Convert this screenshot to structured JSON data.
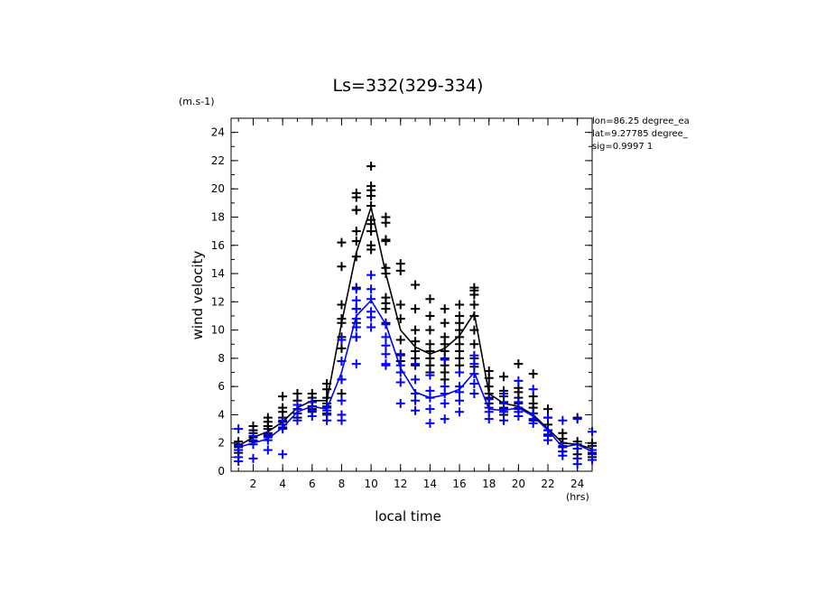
{
  "chart_data": {
    "type": "scatter",
    "title": "Ls=332(329-334)",
    "xlabel": "local time",
    "ylabel": "wind velocity",
    "x_unit": "(hrs)",
    "y_unit": "(m.s-1)",
    "xlim": [
      0.5,
      25
    ],
    "ylim": [
      0,
      25
    ],
    "x_ticks": [
      2,
      4,
      6,
      8,
      10,
      12,
      14,
      16,
      18,
      20,
      22,
      24
    ],
    "y_ticks": [
      0,
      2,
      4,
      6,
      8,
      10,
      12,
      14,
      16,
      18,
      20,
      22,
      24
    ],
    "annotations": [
      "lon=86.25 degree_ea",
      "lat=9.27785 degree_",
      "sig=0.9997 1"
    ],
    "series": [
      {
        "color": "#000000",
        "mean_line": {
          "x": [
            1,
            2,
            3,
            4,
            5,
            6,
            7,
            8,
            9,
            10,
            11,
            12,
            13,
            14,
            15,
            16,
            17,
            18,
            19,
            20,
            21,
            22,
            23,
            24,
            25
          ],
          "y": [
            1.8,
            2.4,
            2.8,
            3.5,
            4.5,
            5.0,
            5.0,
            10.5,
            15.5,
            18.7,
            14.0,
            10.0,
            8.8,
            8.3,
            8.7,
            9.6,
            11.2,
            5.5,
            4.8,
            4.6,
            4.0,
            3.0,
            2.0,
            1.9,
            1.6
          ]
        },
        "points": {
          "x": [
            1,
            1,
            1,
            1,
            1,
            2,
            2,
            2,
            2,
            2,
            3,
            3,
            3,
            3,
            3,
            3,
            4,
            4,
            4,
            4,
            4,
            4,
            5,
            5,
            5,
            5,
            5,
            5,
            6,
            6,
            6,
            6,
            6,
            6,
            7,
            7,
            7,
            7,
            7,
            7,
            8,
            8,
            8,
            8,
            8,
            8,
            8,
            8,
            8,
            8,
            9,
            9,
            9,
            9,
            9,
            9,
            9,
            9,
            9,
            9,
            9,
            10,
            10,
            10,
            10,
            10,
            10,
            10,
            10,
            10,
            10,
            11,
            11,
            11,
            11,
            11,
            11,
            11,
            11,
            11,
            11,
            12,
            12,
            12,
            12,
            12,
            12,
            12,
            13,
            13,
            13,
            13,
            13,
            13,
            13,
            14,
            14,
            14,
            14,
            14,
            14,
            14,
            14,
            15,
            15,
            15,
            15,
            15,
            15,
            15,
            15,
            15,
            16,
            16,
            16,
            16,
            16,
            16,
            16,
            16,
            16,
            17,
            17,
            17,
            17,
            17,
            17,
            17,
            17,
            17,
            18,
            18,
            18,
            18,
            18,
            18,
            19,
            19,
            19,
            19,
            19,
            19,
            20,
            20,
            20,
            20,
            20,
            20,
            21,
            21,
            21,
            21,
            21,
            21,
            22,
            22,
            22,
            22,
            22,
            23,
            23,
            23,
            23,
            23,
            24,
            24,
            24,
            24,
            24,
            25,
            25,
            25,
            25,
            25
          ],
          "y": [
            2.1,
            1.9,
            1.7,
            1.5,
            1.3,
            3.2,
            2.9,
            2.7,
            2.4,
            2.1,
            3.8,
            3.5,
            3.2,
            3.0,
            2.7,
            2.5,
            5.3,
            4.5,
            4.2,
            3.8,
            3.5,
            3.1,
            5.5,
            5.0,
            4.7,
            4.4,
            4.1,
            3.8,
            5.5,
            5.2,
            4.9,
            4.6,
            4.4,
            4.2,
            6.2,
            5.8,
            5.2,
            4.8,
            4.5,
            4.1,
            16.2,
            14.5,
            11.8,
            10.8,
            10.5,
            9.5,
            8.7,
            7.8,
            6.5,
            5.5,
            19.7,
            19.4,
            18.5,
            18.5,
            17.0,
            16.3,
            15.2,
            13.0,
            11.5,
            10.5,
            9.5,
            21.6,
            20.2,
            19.9,
            19.5,
            18.8,
            17.8,
            17.5,
            17.0,
            16.0,
            15.7,
            18.0,
            17.6,
            16.4,
            16.3,
            14.4,
            14.0,
            12.3,
            11.9,
            11.5,
            10.5,
            14.7,
            14.2,
            11.8,
            10.8,
            9.3,
            8.3,
            7.8,
            13.2,
            11.5,
            10.0,
            9.2,
            8.5,
            8.0,
            7.5,
            12.2,
            11.0,
            10.0,
            9.0,
            8.5,
            8.0,
            7.5,
            7.0,
            11.5,
            10.5,
            9.5,
            9.0,
            8.5,
            8.0,
            7.5,
            7.0,
            6.5,
            11.8,
            11.0,
            10.5,
            10.0,
            9.5,
            9.0,
            8.5,
            8.0,
            7.5,
            13.0,
            12.8,
            12.5,
            11.8,
            11.0,
            10.0,
            9.0,
            8.0,
            7.4,
            7.1,
            6.6,
            6.0,
            5.5,
            5.2,
            4.8,
            6.7,
            5.7,
            5.3,
            4.9,
            4.5,
            4.0,
            7.6,
            5.9,
            5.6,
            5.2,
            4.8,
            4.4,
            6.9,
            5.3,
            4.8,
            4.5,
            4.1,
            3.6,
            4.4,
            3.8,
            3.3,
            2.9,
            2.6,
            2.7,
            2.3,
            2.0,
            1.7,
            1.4,
            3.8,
            2.1,
            1.9,
            1.6,
            1.2,
            2.0,
            1.8,
            1.5,
            1.3,
            1.0
          ]
        }
      },
      {
        "color": "#0000ff",
        "mean_line": {
          "x": [
            1,
            2,
            3,
            4,
            5,
            6,
            7,
            8,
            9,
            10,
            11,
            12,
            13,
            14,
            15,
            16,
            17,
            18,
            19,
            20,
            21,
            22,
            23,
            24,
            25
          ],
          "y": [
            1.7,
            2.0,
            2.3,
            3.1,
            4.2,
            4.6,
            4.4,
            7.0,
            11.0,
            12.1,
            10.4,
            7.3,
            5.6,
            5.2,
            5.4,
            5.8,
            7.0,
            4.4,
            4.3,
            4.5,
            3.9,
            2.9,
            1.7,
            1.9,
            1.4
          ]
        },
        "points": {
          "x": [
            1,
            1,
            1,
            1,
            1,
            2,
            2,
            2,
            2,
            3,
            3,
            3,
            3,
            4,
            4,
            4,
            4,
            5,
            5,
            5,
            5,
            6,
            6,
            6,
            6,
            7,
            7,
            7,
            7,
            8,
            8,
            8,
            8,
            8,
            8,
            9,
            9,
            9,
            9,
            9,
            9,
            9,
            10,
            10,
            10,
            10,
            10,
            10,
            11,
            11,
            11,
            11,
            11,
            11,
            12,
            12,
            12,
            12,
            12,
            13,
            13,
            13,
            13,
            13,
            14,
            14,
            14,
            14,
            14,
            15,
            15,
            15,
            15,
            15,
            16,
            16,
            16,
            16,
            16,
            17,
            17,
            17,
            17,
            17,
            18,
            18,
            18,
            18,
            19,
            19,
            19,
            19,
            19,
            20,
            20,
            20,
            20,
            20,
            21,
            21,
            21,
            21,
            22,
            22,
            22,
            22,
            23,
            23,
            23,
            23,
            24,
            24,
            24,
            24,
            25,
            25,
            25,
            25
          ],
          "y": [
            3.0,
            1.8,
            1.5,
            1.0,
            0.7,
            2.5,
            2.2,
            1.9,
            0.9,
            2.6,
            2.4,
            2.2,
            1.5,
            3.6,
            3.3,
            3.0,
            1.2,
            4.7,
            4.4,
            4.1,
            3.6,
            4.9,
            4.6,
            4.3,
            3.9,
            4.6,
            4.3,
            4.0,
            3.6,
            9.3,
            7.8,
            6.5,
            5.0,
            4.0,
            3.6,
            12.9,
            12.1,
            11.5,
            10.8,
            10.2,
            9.5,
            7.6,
            13.9,
            12.9,
            12.2,
            11.3,
            10.9,
            10.2,
            10.4,
            9.5,
            8.9,
            8.3,
            7.6,
            7.5,
            8.2,
            7.5,
            7.0,
            6.3,
            4.8,
            7.6,
            6.5,
            5.5,
            5.0,
            4.3,
            6.8,
            5.7,
            5.2,
            4.4,
            3.4,
            7.9,
            6.0,
            5.5,
            4.8,
            3.7,
            7.0,
            6.0,
            5.6,
            5.0,
            4.2,
            8.2,
            7.6,
            6.9,
            6.2,
            5.5,
            5.1,
            4.5,
            4.2,
            3.7,
            5.5,
            4.8,
            4.4,
            4.2,
            3.6,
            6.4,
            4.9,
            4.5,
            4.2,
            3.9,
            5.8,
            4.1,
            3.7,
            3.4,
            3.8,
            2.9,
            2.5,
            2.2,
            3.6,
            1.8,
            1.4,
            1.1,
            3.7,
            1.6,
            0.9,
            0.5,
            2.8,
            1.5,
            1.2,
            0.8
          ]
        }
      }
    ]
  }
}
